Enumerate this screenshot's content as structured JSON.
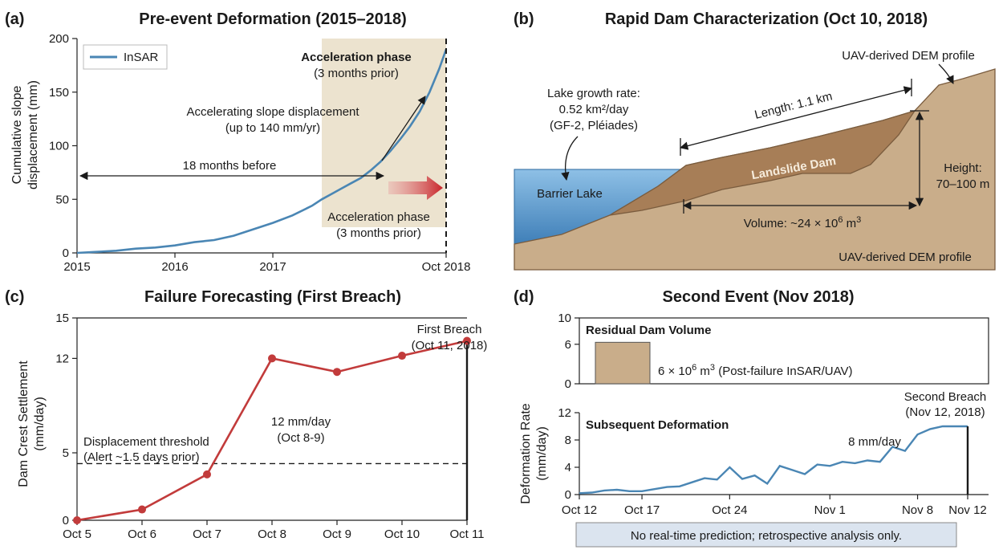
{
  "colors": {
    "insar_line": "#4a86b4",
    "forecast_line": "#c23b3b",
    "deform_line": "#4a86b4",
    "dam_fill": "#a77e57",
    "terrain_fill": "#c9ad8a",
    "lake_fill": "#5d9bcc",
    "shade": "#ece3cf",
    "residual_bar": "#c9ad8a",
    "note_bg": "#dbe4ef"
  },
  "panel_a": {
    "label": "(a)",
    "title": "Pre-event Deformation (2015–2018)",
    "ylabel_line1": "Cumulative slope",
    "ylabel_line2": "displacement (mm)",
    "legend": "InSAR",
    "ann_accel_bold": "Acceleration phase",
    "ann_accel_sub": "(3 months prior)",
    "ann_slope_line1": "Accelerating slope displacement",
    "ann_slope_line2": "(up to 140 mm/yr)",
    "ann_18months": "18 months before",
    "ann_accel2_line1": "Acceleration phase",
    "ann_accel2_line2": "(3 months prior)"
  },
  "panel_b": {
    "label": "(b)",
    "title": "Rapid Dam Characterization (Oct 10, 2018)",
    "lake_rate_line1": "Lake growth rate:",
    "lake_rate_line2": "0.52 km²/day",
    "lake_rate_line3": "(GF-2, Pléiades)",
    "barrier_lake": "Barrier Lake",
    "length": "Length: 1.1 km",
    "landslide_dam": "Landslide Dam",
    "height_line1": "Height:",
    "height_line2": "70–100 m",
    "volume_pre": "Volume: ~24 × 10",
    "volume_sup": "6",
    "volume_post": " m",
    "volume_sup2": "3",
    "dem_top": "UAV-derived DEM profile",
    "dem_bottom": "UAV-derived DEM profile"
  },
  "panel_c": {
    "label": "(c)",
    "title": "Failure Forecasting (First Breach)",
    "ylabel_line1": "Dam Crest Settlement",
    "ylabel_line2": "(mm/day)",
    "threshold_line1": "Displacement threshold",
    "threshold_line2": "(Alert ~1.5 days prior)",
    "rate_line1": "12 mm/day",
    "rate_line2": "(Oct 8-9)",
    "breach_line1": "First Breach",
    "breach_line2": "(Oct 11, 2018)"
  },
  "panel_d": {
    "label": "(d)",
    "title": "Second Event (Nov 2018)",
    "residual_title": "Residual Dam Volume",
    "residual_text_pre": "6 × 10",
    "residual_text_sup": "6",
    "residual_text_mid": " m",
    "residual_text_sup2": "3",
    "residual_text_post": " (Post-failure InSAR/UAV)",
    "ylabel_line1": "Deformation Rate",
    "ylabel_line2": "(mm/day)",
    "subsequent_title": "Subsequent Deformation",
    "rate_label": "8 mm/day",
    "breach_line1": "Second Breach",
    "breach_line2": "(Nov 12, 2018)",
    "note": "No real-time prediction; retrospective analysis only."
  },
  "chart_data": [
    {
      "panel": "a",
      "type": "line",
      "title": "Pre-event Deformation (2015–2018)",
      "xlabel": "",
      "ylabel": "Cumulative slope displacement (mm)",
      "x_range": [
        2015.0,
        2018.77
      ],
      "ylim": [
        0,
        200
      ],
      "x_ticks": [
        2015,
        2016,
        2017,
        2018.77
      ],
      "x_tick_labels": [
        "2015",
        "2016",
        "2017",
        "Oct 2018"
      ],
      "y_ticks": [
        0,
        50,
        100,
        150,
        200
      ],
      "grid": false,
      "legend": "top-left",
      "shaded_range": [
        2017.5,
        2018.77
      ],
      "event_marker_x": 2018.77,
      "series": [
        {
          "name": "InSAR",
          "x": [
            2015.0,
            2015.2,
            2015.4,
            2015.6,
            2015.8,
            2016.0,
            2016.2,
            2016.4,
            2016.6,
            2016.8,
            2017.0,
            2017.2,
            2017.4,
            2017.5,
            2017.6,
            2017.7,
            2017.8,
            2017.9,
            2018.0,
            2018.1,
            2018.2,
            2018.3,
            2018.4,
            2018.5,
            2018.6,
            2018.7,
            2018.77
          ],
          "y": [
            0,
            1,
            2,
            4,
            5,
            7,
            10,
            12,
            16,
            22,
            28,
            35,
            44,
            50,
            55,
            60,
            65,
            70,
            77,
            85,
            95,
            106,
            118,
            132,
            150,
            172,
            190
          ]
        }
      ]
    },
    {
      "panel": "c",
      "type": "line",
      "title": "Failure Forecasting (First Breach)",
      "xlabel": "",
      "ylabel": "Dam Crest Settlement (mm/day)",
      "categories": [
        "Oct 5",
        "Oct 6",
        "Oct 7",
        "Oct 8",
        "Oct 9",
        "Oct 10",
        "Oct 11"
      ],
      "ylim": [
        0,
        15
      ],
      "y_ticks": [
        0,
        5,
        12,
        15
      ],
      "threshold": 4.2,
      "grid": false,
      "series": [
        {
          "values": [
            0,
            0.8,
            3.4,
            12,
            11,
            12.2,
            13.3
          ]
        }
      ]
    },
    {
      "panel": "d-top",
      "type": "bar",
      "title": "Residual Dam Volume",
      "ylim": [
        0,
        10
      ],
      "y_ticks": [
        0,
        6,
        10
      ],
      "values": [
        6.3
      ],
      "grid": false
    },
    {
      "panel": "d-bottom",
      "type": "line",
      "title": "Subsequent Deformation",
      "ylabel": "Deformation Rate (mm/day)",
      "x_range_days": [
        0,
        31
      ],
      "x_ticks": [
        0,
        5,
        12,
        20,
        27,
        31
      ],
      "x_tick_labels": [
        "Oct 12",
        "Oct 17",
        "Oct 24",
        "Nov 1",
        "Nov 8",
        "Nov 12"
      ],
      "ylim": [
        0,
        12
      ],
      "y_ticks": [
        0,
        4,
        8,
        12
      ],
      "grid": false,
      "series": [
        {
          "x": [
            0,
            1,
            2,
            3,
            4,
            5,
            6,
            7,
            8,
            9,
            10,
            11,
            12,
            13,
            14,
            15,
            16,
            17,
            18,
            19,
            20,
            21,
            22,
            23,
            24,
            25,
            26,
            27,
            28,
            29,
            30,
            31
          ],
          "values": [
            0.2,
            0.3,
            0.6,
            0.7,
            0.5,
            0.5,
            0.8,
            1.1,
            1.2,
            1.8,
            2.4,
            2.2,
            4.0,
            2.3,
            2.8,
            1.6,
            4.2,
            3.6,
            3.0,
            4.4,
            4.2,
            4.8,
            4.6,
            5.0,
            4.8,
            7.0,
            6.4,
            8.8,
            9.6,
            10.0,
            10.0,
            10.0
          ]
        }
      ]
    }
  ]
}
